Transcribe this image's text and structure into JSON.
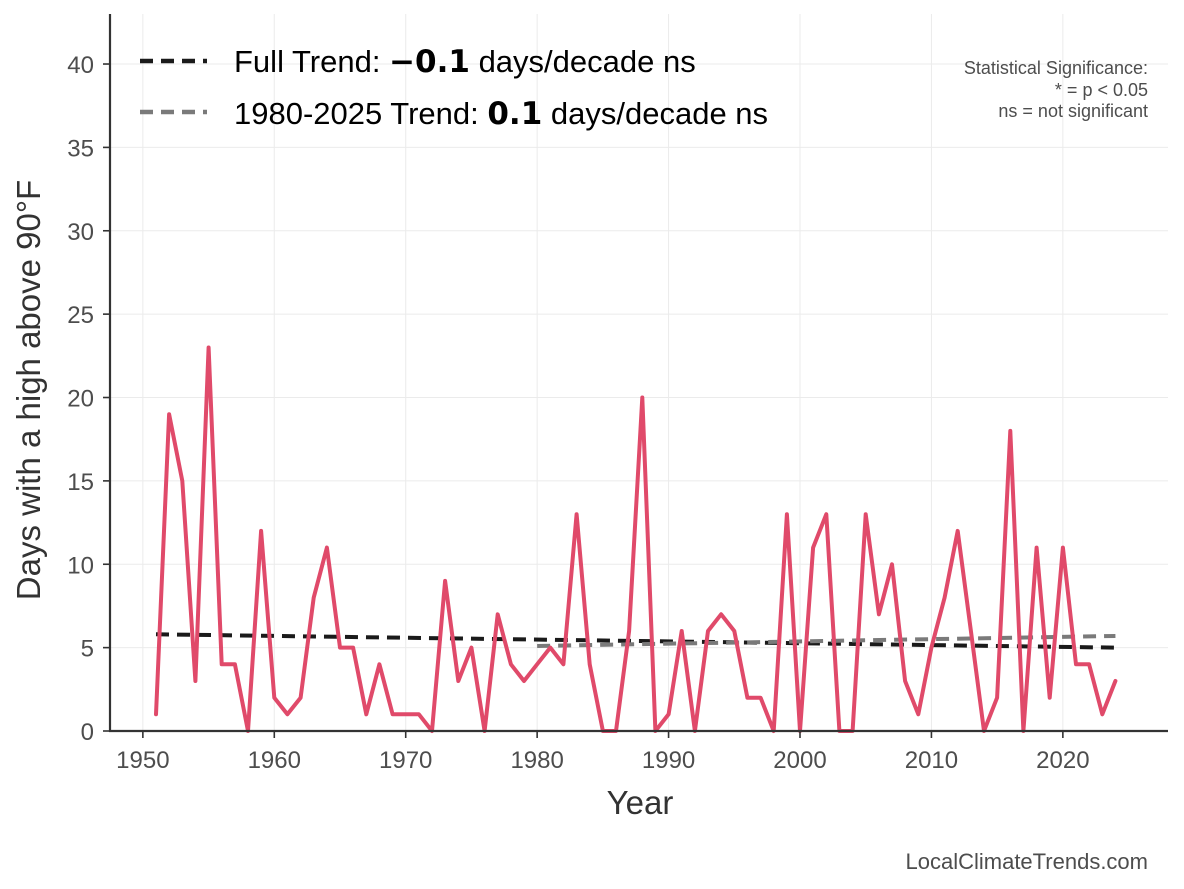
{
  "chart_data": {
    "type": "line",
    "xlabel": "Year",
    "ylabel": "Days with a high above 90°F",
    "xlim": [
      1947.5,
      2028
    ],
    "ylim": [
      0,
      43
    ],
    "xticks": [
      1950,
      1960,
      1970,
      1980,
      1990,
      2000,
      2010,
      2020
    ],
    "yticks": [
      0,
      5,
      10,
      15,
      20,
      25,
      30,
      35,
      40
    ],
    "grid": true,
    "series": [
      {
        "color": "#e04a6a",
        "x": [
          1951,
          1952,
          1953,
          1954,
          1955,
          1956,
          1957,
          1958,
          1959,
          1960,
          1961,
          1962,
          1963,
          1964,
          1965,
          1966,
          1967,
          1968,
          1969,
          1970,
          1971,
          1972,
          1973,
          1974,
          1975,
          1976,
          1977,
          1978,
          1979,
          1980,
          1981,
          1982,
          1983,
          1984,
          1985,
          1986,
          1987,
          1988,
          1989,
          1990,
          1991,
          1992,
          1993,
          1994,
          1995,
          1996,
          1997,
          1998,
          1999,
          2000,
          2001,
          2002,
          2003,
          2004,
          2005,
          2006,
          2007,
          2008,
          2009,
          2010,
          2011,
          2012,
          2013,
          2014,
          2015,
          2016,
          2017,
          2018,
          2019,
          2020,
          2021,
          2022,
          2023,
          2024
        ],
        "y": [
          1,
          19,
          15,
          3,
          23,
          4,
          4,
          0,
          12,
          2,
          1,
          2,
          8,
          11,
          5,
          5,
          1,
          4,
          1,
          1,
          1,
          0,
          9,
          3,
          5,
          0,
          7,
          4,
          3,
          4,
          5,
          4,
          13,
          4,
          0,
          0,
          6,
          20,
          0,
          1,
          6,
          0,
          6,
          7,
          6,
          2,
          2,
          0,
          13,
          0,
          11,
          13,
          0,
          0,
          13,
          7,
          10,
          3,
          1,
          5,
          8,
          12,
          6,
          0,
          2,
          18,
          0,
          11,
          2,
          11,
          4,
          4,
          1,
          3
        ]
      }
    ],
    "trends": [
      {
        "label": "Full Trend",
        "color": "#1a1a1a",
        "x": [
          1951,
          2024
        ],
        "y": [
          5.8,
          5.0
        ]
      },
      {
        "label": "1980-2025 Trend",
        "color": "#7a7a7a",
        "x": [
          1980,
          2024
        ],
        "y": [
          5.1,
          5.7
        ]
      }
    ],
    "legend": {
      "placement": "top-left",
      "items": [
        {
          "prefix": "Full Trend: ",
          "value": "−0.1",
          "suffix": " days/decade ns",
          "color": "#1a1a1a"
        },
        {
          "prefix": "1980-2025 Trend: ",
          "value": "0.1",
          "suffix": " days/decade ns",
          "color": "#7a7a7a"
        }
      ]
    },
    "significance": {
      "line1": "Statistical Significance:",
      "line2": "* = p < 0.05",
      "line3": "ns = not significant"
    },
    "credit": "LocalClimateTrends.com"
  }
}
